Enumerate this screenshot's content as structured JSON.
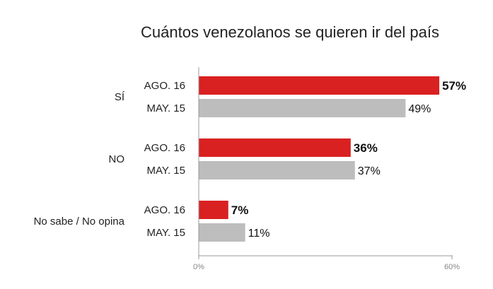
{
  "chart_data": {
    "type": "bar",
    "orientation": "horizontal",
    "title": "Cuántos venezolanos se quieren ir del país",
    "categories": [
      "SÍ",
      "NO",
      "No sabe / No opina"
    ],
    "series": [
      {
        "name": "AGO. 16",
        "values": [
          57,
          36,
          7
        ],
        "color": "#d92121",
        "value_labels": [
          "57%",
          "36%",
          "7%"
        ]
      },
      {
        "name": "MAY. 15",
        "values": [
          49,
          37,
          11
        ],
        "color": "#bdbdbd",
        "value_labels": [
          "49%",
          "37%",
          "11%"
        ]
      }
    ],
    "xlim": [
      0,
      60
    ],
    "ticks": [
      {
        "value": 0,
        "label": "0%"
      },
      {
        "value": 60,
        "label": "60%"
      }
    ],
    "grid": false,
    "legend": "none"
  }
}
